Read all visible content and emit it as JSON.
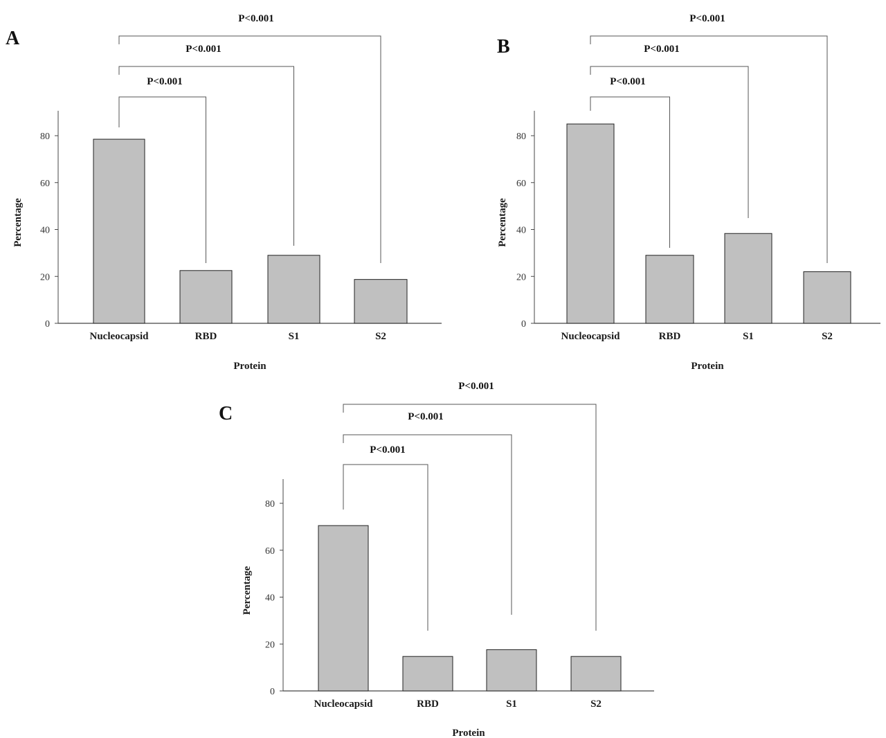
{
  "chart_data": [
    {
      "type": "bar",
      "panel": "A",
      "categories": [
        "Nucleocapsid",
        "RBD",
        "S1",
        "S2"
      ],
      "values": [
        78.5,
        22.5,
        29,
        18.7
      ],
      "xlabel": "Protein",
      "ylabel": "Percentage",
      "ylim": [
        0,
        90
      ],
      "yticks": [
        "0",
        "20",
        "40",
        "60",
        "80"
      ],
      "bar_color": "#c0c0c0",
      "grid": false,
      "comparisons": [
        {
          "from": "Nucleocapsid",
          "to": "RBD",
          "label": "P<0.001"
        },
        {
          "from": "Nucleocapsid",
          "to": "S1",
          "label": "P<0.001"
        },
        {
          "from": "Nucleocapsid",
          "to": "S2",
          "label": "P<0.001"
        }
      ]
    },
    {
      "type": "bar",
      "panel": "B",
      "categories": [
        "Nucleocapsid",
        "RBD",
        "S1",
        "S2"
      ],
      "values": [
        85,
        29,
        38.3,
        22
      ],
      "xlabel": "Protein",
      "ylabel": "Percentage",
      "ylim": [
        0,
        90
      ],
      "yticks": [
        "0",
        "20",
        "40",
        "60",
        "80"
      ],
      "bar_color": "#c0c0c0",
      "grid": false,
      "comparisons": [
        {
          "from": "Nucleocapsid",
          "to": "RBD",
          "label": "P<0.001"
        },
        {
          "from": "Nucleocapsid",
          "to": "S1",
          "label": "P<0.001"
        },
        {
          "from": "Nucleocapsid",
          "to": "S2",
          "label": "P<0.001"
        }
      ]
    },
    {
      "type": "bar",
      "panel": "C",
      "categories": [
        "Nucleocapsid",
        "RBD",
        "S1",
        "S2"
      ],
      "values": [
        70.5,
        14.7,
        17.6,
        14.7
      ],
      "xlabel": "Protein",
      "ylabel": "Percentage",
      "ylim": [
        0,
        90
      ],
      "yticks": [
        "0",
        "20",
        "40",
        "60",
        "80"
      ],
      "bar_color": "#c0c0c0",
      "grid": false,
      "comparisons": [
        {
          "from": "Nucleocapsid",
          "to": "RBD",
          "label": "P<0.001"
        },
        {
          "from": "Nucleocapsid",
          "to": "S1",
          "label": "P<0.001"
        },
        {
          "from": "Nucleocapsid",
          "to": "S2",
          "label": "P<0.001"
        }
      ]
    }
  ]
}
